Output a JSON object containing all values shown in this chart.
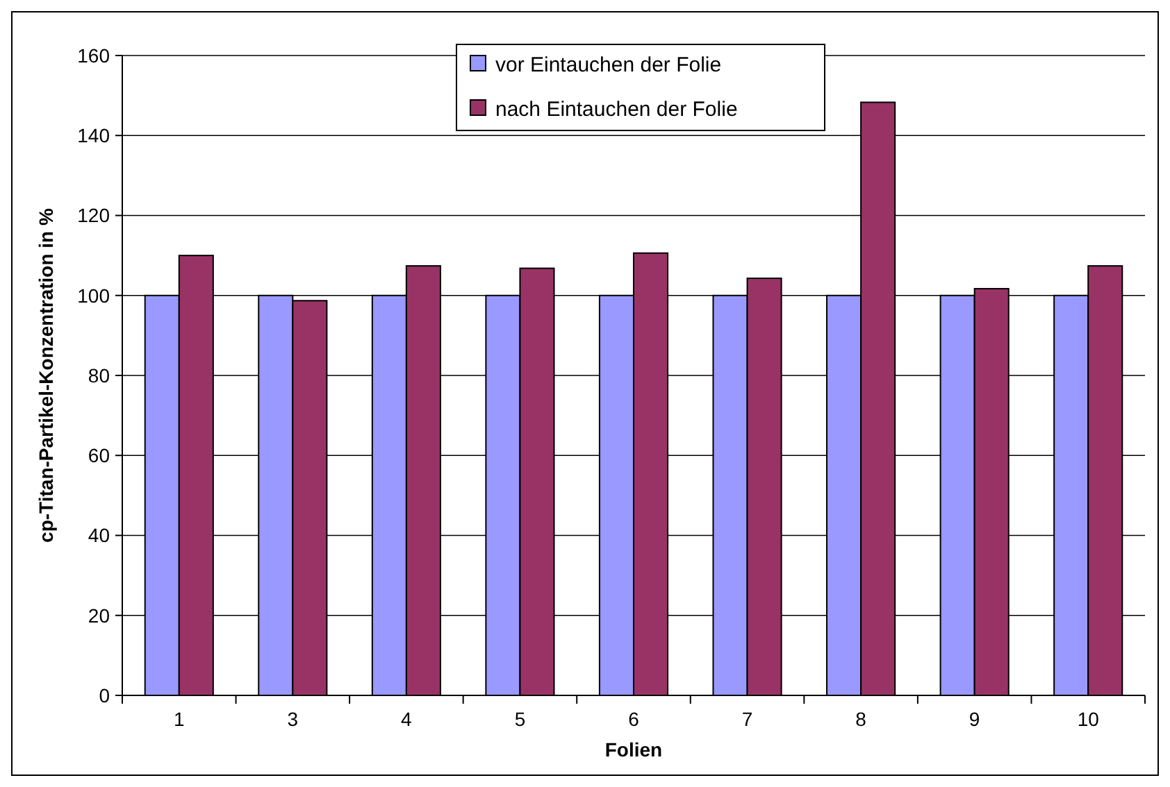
{
  "chart_data": {
    "type": "bar",
    "xlabel": "Folien",
    "ylabel": "cp-Titan-Partikel-Konzentration in %",
    "categories": [
      "1",
      "3",
      "4",
      "5",
      "6",
      "7",
      "8",
      "9",
      "10"
    ],
    "series": [
      {
        "name": "vor Eintauchen der Folie",
        "color": "#9999ff",
        "values": [
          100,
          100,
          100,
          100,
          100,
          100,
          100,
          100,
          100
        ]
      },
      {
        "name": "nach Eintauchen der Folie",
        "color": "#993366",
        "values": [
          110,
          98.7,
          107.4,
          106.8,
          110.6,
          104.3,
          148.3,
          101.7,
          107.4
        ]
      }
    ],
    "ylim": [
      0,
      160
    ],
    "yticks": [
      0,
      20,
      40,
      60,
      80,
      100,
      120,
      140,
      160
    ],
    "grid": "y",
    "legend": "top"
  }
}
